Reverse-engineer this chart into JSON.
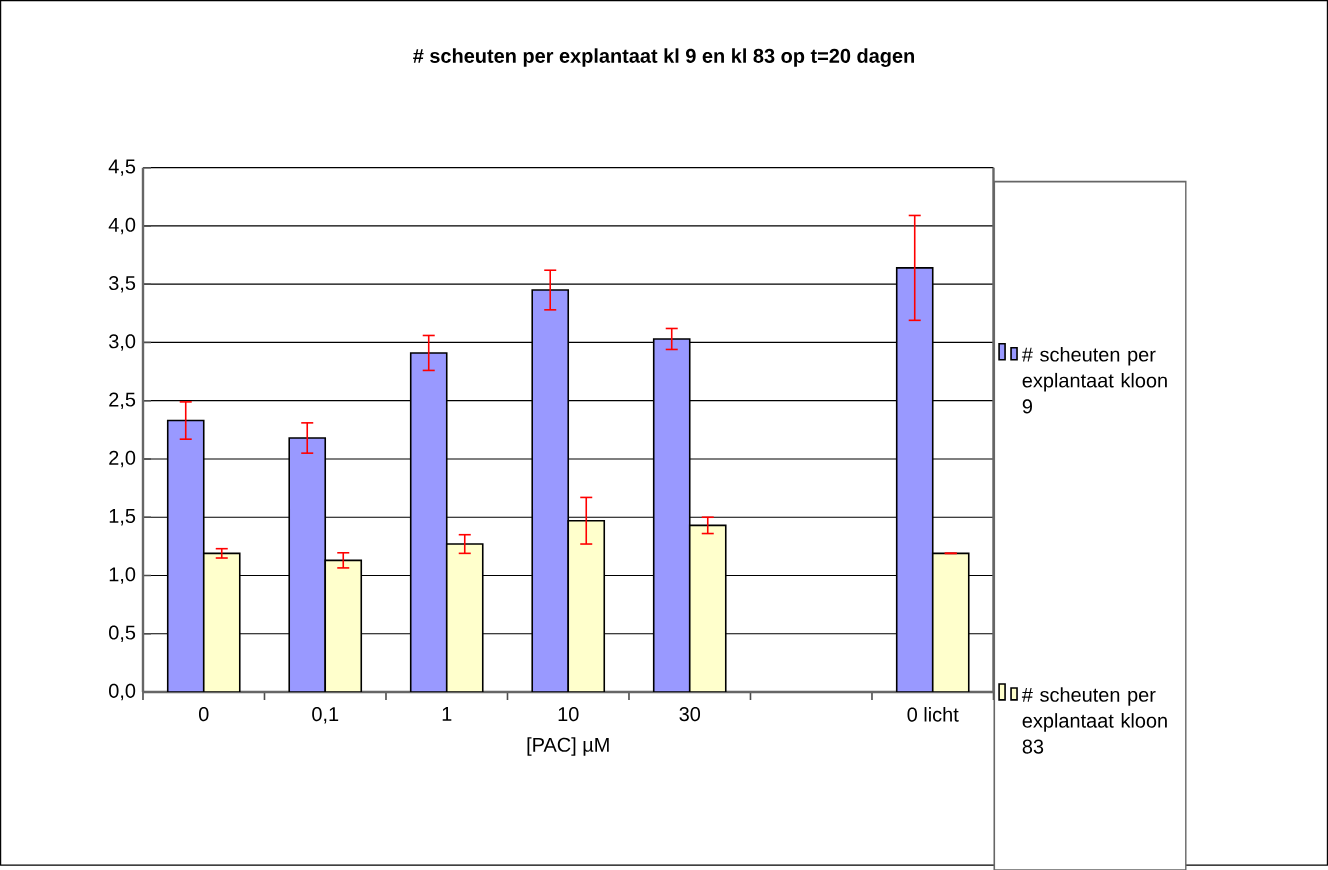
{
  "chart_data": {
    "type": "bar",
    "title": "# scheuten per explantaat kl 9 en kl 83 op t=20 dagen",
    "xlabel": "[PAC] µM",
    "categories": [
      "0",
      "0,1",
      "1",
      "10",
      "30",
      null,
      "0 licht"
    ],
    "series": [
      {
        "name": "# scheuten per explantaat kloon 9",
        "color": "#9999ff",
        "values": [
          2.33,
          2.18,
          2.91,
          3.45,
          3.03,
          null,
          3.64
        ],
        "errors": [
          0.16,
          0.13,
          0.15,
          0.17,
          0.09,
          null,
          0.45
        ]
      },
      {
        "name": "# scheuten per explantaat kloon 83",
        "color": "#ffffcc",
        "values": [
          1.19,
          1.13,
          1.27,
          1.47,
          1.43,
          null,
          1.19
        ],
        "errors": [
          0.04,
          0.065,
          0.08,
          0.2,
          0.07,
          null,
          0
        ]
      }
    ],
    "ylim": [
      0,
      4.5
    ],
    "yticks": [
      {
        "value": 0,
        "label": "0,0"
      },
      {
        "value": 0.5,
        "label": "0,5"
      },
      {
        "value": 1,
        "label": "1,0"
      },
      {
        "value": 1.5,
        "label": "1,5"
      },
      {
        "value": 2,
        "label": "2,0"
      },
      {
        "value": 2.5,
        "label": "2,5"
      },
      {
        "value": 3,
        "label": "3,0"
      },
      {
        "value": 3.5,
        "label": "3,5"
      },
      {
        "value": 4,
        "label": "4,0"
      },
      {
        "value": 4.5,
        "label": "4,5"
      }
    ],
    "grid": "y",
    "legend": "right"
  }
}
